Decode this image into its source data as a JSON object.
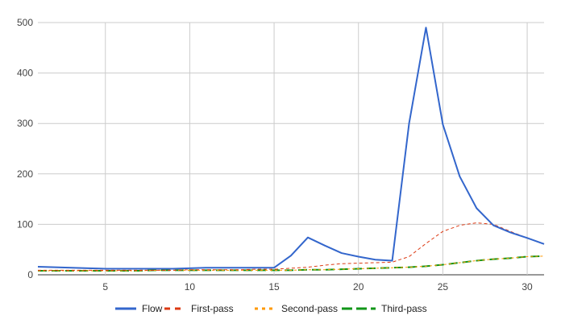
{
  "chart_data": {
    "type": "line",
    "title": "",
    "xlabel": "",
    "ylabel": "",
    "xlim": [
      1,
      31
    ],
    "ylim": [
      0,
      500
    ],
    "x_ticks": [
      5,
      10,
      15,
      20,
      25,
      30
    ],
    "y_ticks": [
      0,
      100,
      200,
      300,
      400,
      500
    ],
    "grid": true,
    "legend_position": "bottom",
    "x": [
      1,
      2,
      3,
      4,
      5,
      6,
      7,
      8,
      9,
      10,
      11,
      12,
      13,
      14,
      15,
      16,
      17,
      18,
      19,
      20,
      21,
      22,
      23,
      24,
      25,
      26,
      27,
      28,
      29,
      30,
      31
    ],
    "series": [
      {
        "name": "Flow",
        "color": "#3366cc",
        "style": "solid",
        "values": [
          16,
          15,
          14,
          13,
          12,
          12,
          12,
          12,
          12,
          13,
          14,
          14,
          14,
          14,
          14,
          38,
          74,
          58,
          43,
          36,
          30,
          28,
          300,
          490,
          298,
          195,
          132,
          98,
          84,
          73,
          61
        ]
      },
      {
        "name": "First-pass",
        "color": "#dc3912",
        "style": "dashed",
        "values": [
          9,
          9,
          9,
          9,
          9,
          9,
          9,
          9,
          9,
          10,
          10,
          10,
          10,
          11,
          11,
          13,
          15,
          19,
          22,
          23,
          24,
          25,
          36,
          62,
          86,
          98,
          103,
          100,
          86,
          73,
          61
        ]
      },
      {
        "name": "Second-pass",
        "color": "#ff9900",
        "style": "dotted",
        "values": [
          8,
          8,
          8,
          8,
          8,
          8,
          8,
          9,
          9,
          9,
          9,
          9,
          9,
          9,
          9,
          9,
          10,
          10,
          11,
          12,
          13,
          14,
          15,
          17,
          20,
          24,
          28,
          31,
          33,
          36,
          37
        ]
      },
      {
        "name": "Third-pass",
        "color": "#109618",
        "style": "longdash",
        "values": [
          8,
          8,
          8,
          8,
          8,
          8,
          8,
          9,
          9,
          9,
          9,
          9,
          9,
          9,
          9,
          9,
          10,
          10,
          11,
          12,
          13,
          14,
          15,
          17,
          20,
          24,
          28,
          31,
          33,
          36,
          37
        ]
      }
    ]
  }
}
